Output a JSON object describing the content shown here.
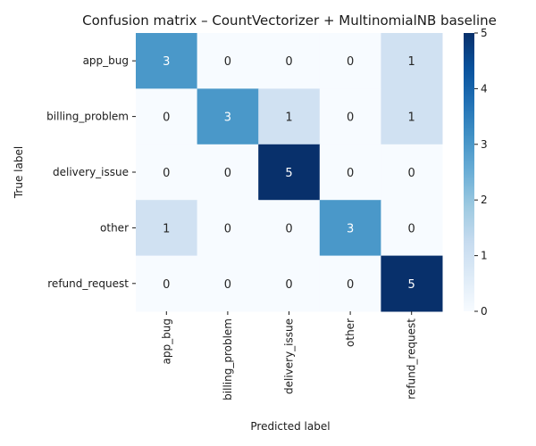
{
  "chart_data": {
    "type": "heatmap",
    "title": "Confusion matrix – CountVectorizer + MultinomialNB baseline",
    "xlabel": "Predicted label",
    "ylabel": "True label",
    "x_categories": [
      "app_bug",
      "billing_problem",
      "delivery_issue",
      "other",
      "refund_request"
    ],
    "y_categories": [
      "app_bug",
      "billing_problem",
      "delivery_issue",
      "other",
      "refund_request"
    ],
    "values": [
      [
        3,
        0,
        0,
        0,
        1
      ],
      [
        0,
        3,
        1,
        0,
        1
      ],
      [
        0,
        0,
        5,
        0,
        0
      ],
      [
        1,
        0,
        0,
        3,
        0
      ],
      [
        0,
        0,
        0,
        0,
        5
      ]
    ],
    "colorbar": {
      "min": 0,
      "max": 5,
      "ticks": [
        "0",
        "1",
        "2",
        "3",
        "4",
        "5"
      ],
      "colormap": "Blues"
    }
  }
}
